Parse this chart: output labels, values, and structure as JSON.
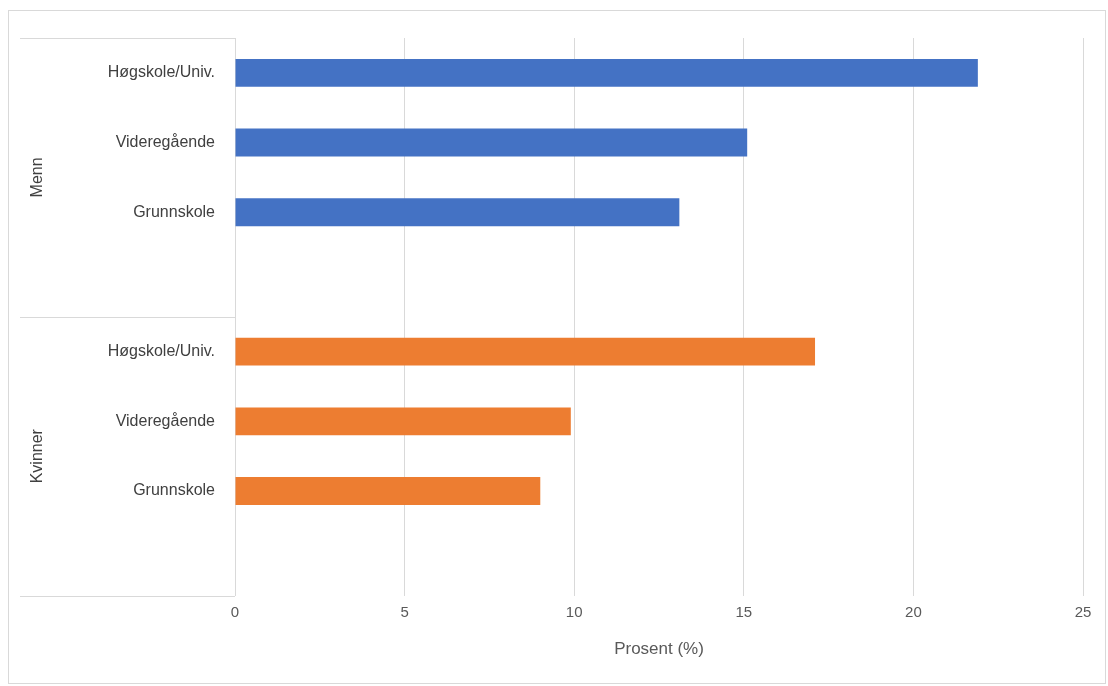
{
  "chart_data": {
    "type": "bar",
    "orientation": "horizontal",
    "xlabel": "Prosent (%)",
    "categories": [
      "Høgskole/Univ.",
      "Videregående",
      "Grunnskole",
      null,
      "Høgskole/Univ.",
      "Videregående",
      "Grunnskole",
      null
    ],
    "values": [
      21.9,
      15.1,
      13.1,
      null,
      17.1,
      9.9,
      9.0,
      null
    ],
    "colors": [
      "#4472c4",
      "#4472c4",
      "#4472c4",
      "#4472c4",
      "#ed7d31",
      "#ed7d31",
      "#ed7d31",
      "#ed7d31"
    ],
    "annotations": [
      "Menn",
      "Kvinner"
    ],
    "xlim": [
      0,
      25
    ],
    "xticks": [
      0,
      5,
      10,
      15,
      20,
      25
    ],
    "grid": "x",
    "legend": false
  }
}
